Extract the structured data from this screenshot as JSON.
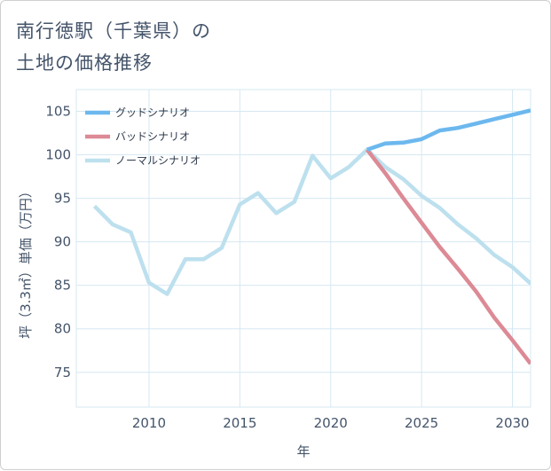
{
  "title": {
    "line1": "南行徳駅（千葉県）の",
    "line2": "土地の価格推移"
  },
  "colors": {
    "good": "#6cb8ee",
    "bad": "#dc8a95",
    "normal": "#bde0ee",
    "grid": "#d6e8f2",
    "text": "#44546a"
  },
  "chart_data": {
    "type": "line",
    "xlabel": "年",
    "ylabel": "坪（3.3㎡）単価（万円）",
    "xlim": [
      2006,
      2031
    ],
    "ylim": [
      71,
      107.5
    ],
    "x_ticks": [
      2010,
      2015,
      2020,
      2025,
      2030
    ],
    "y_ticks": [
      75,
      80,
      85,
      90,
      95,
      100,
      105
    ],
    "legend_position": "top-left",
    "series": [
      {
        "name": "グッドシナリオ",
        "key": "good",
        "x": [
          2022,
          2023,
          2024,
          2025,
          2026,
          2027,
          2028,
          2029,
          2030,
          2031
        ],
        "values": [
          100.6,
          101.3,
          101.4,
          101.8,
          102.8,
          103.1,
          103.6,
          104.1,
          104.6,
          105.1
        ]
      },
      {
        "name": "バッドシナリオ",
        "key": "bad",
        "x": [
          2022,
          2023,
          2024,
          2025,
          2026,
          2027,
          2028,
          2029,
          2030,
          2031
        ],
        "values": [
          100.6,
          97.9,
          95.0,
          92.2,
          89.4,
          86.9,
          84.3,
          81.3,
          78.7,
          76.0
        ]
      },
      {
        "name": "ノーマルシナリオ",
        "key": "normal",
        "x": [
          2007,
          2008,
          2009,
          2010,
          2011,
          2012,
          2013,
          2014,
          2015,
          2016,
          2017,
          2018,
          2019,
          2020,
          2021,
          2022,
          2023,
          2024,
          2025,
          2026,
          2027,
          2028,
          2029,
          2030,
          2031
        ],
        "values": [
          94.1,
          92.0,
          91.1,
          85.3,
          84.0,
          88.0,
          88.0,
          89.3,
          94.3,
          95.6,
          93.3,
          94.6,
          99.9,
          97.3,
          98.6,
          100.6,
          98.6,
          97.2,
          95.3,
          93.9,
          92.0,
          90.4,
          88.5,
          87.1,
          85.2
        ]
      }
    ]
  }
}
